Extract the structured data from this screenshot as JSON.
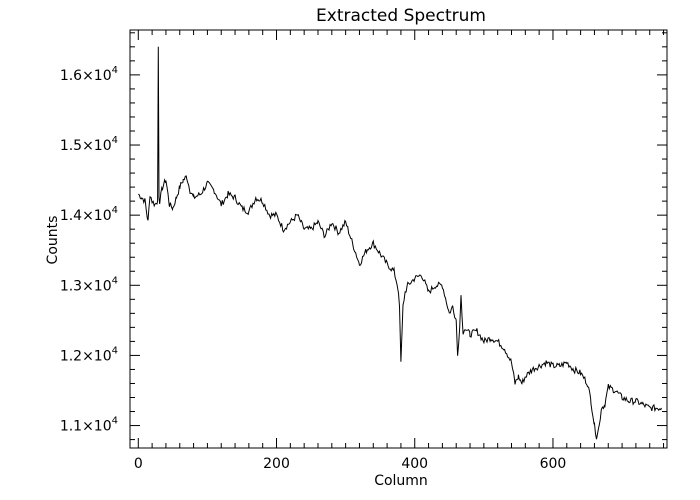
{
  "chart_data": {
    "type": "line",
    "title": "Extracted  Spectrum",
    "xlabel": "Column",
    "ylabel": "Counts",
    "xlim": [
      -12,
      765
    ],
    "ylim": [
      10680,
      16640
    ],
    "x_ticks": [
      {
        "value": 0,
        "label": "0"
      },
      {
        "value": 200,
        "label": "200"
      },
      {
        "value": 400,
        "label": "400"
      },
      {
        "value": 600,
        "label": "600"
      }
    ],
    "y_ticks": [
      {
        "value": 11000,
        "mantissa": "1.1",
        "exp": "4"
      },
      {
        "value": 12000,
        "mantissa": "1.2",
        "exp": "4"
      },
      {
        "value": 13000,
        "mantissa": "1.3",
        "exp": "4"
      },
      {
        "value": 14000,
        "mantissa": "1.4",
        "exp": "4"
      },
      {
        "value": 15000,
        "mantissa": "1.5",
        "exp": "4"
      },
      {
        "value": 16000,
        "mantissa": "1.6",
        "exp": "4"
      }
    ],
    "line_color": "#000000",
    "grid": false,
    "series": [
      {
        "name": "",
        "x": [
          0,
          5,
          10,
          14,
          17,
          20,
          24,
          28,
          29,
          30,
          31,
          35,
          40,
          45,
          50,
          55,
          60,
          65,
          70,
          75,
          80,
          90,
          100,
          110,
          120,
          130,
          140,
          150,
          160,
          170,
          180,
          190,
          200,
          210,
          220,
          230,
          240,
          250,
          260,
          270,
          280,
          290,
          300,
          310,
          320,
          330,
          340,
          350,
          360,
          370,
          375,
          378,
          380,
          383,
          386,
          390,
          400,
          410,
          420,
          430,
          440,
          450,
          455,
          460,
          462,
          465,
          467,
          470,
          472,
          480,
          490,
          500,
          510,
          520,
          530,
          540,
          545,
          550,
          555,
          560,
          570,
          580,
          590,
          600,
          610,
          620,
          630,
          640,
          650,
          655,
          660,
          663,
          667,
          670,
          675,
          680,
          690,
          700,
          710,
          720,
          730,
          740,
          750,
          757
        ],
        "y": [
          14300,
          14250,
          14200,
          13900,
          14300,
          14200,
          14150,
          14200,
          16400,
          14250,
          14200,
          14400,
          14500,
          14150,
          14100,
          14250,
          14400,
          14500,
          14550,
          14350,
          14250,
          14300,
          14450,
          14350,
          14150,
          14300,
          14250,
          14100,
          14050,
          14250,
          14200,
          14000,
          14000,
          13800,
          13900,
          14000,
          13800,
          13800,
          13900,
          13700,
          13900,
          13750,
          13900,
          13600,
          13300,
          13500,
          13600,
          13450,
          13300,
          13200,
          13000,
          12700,
          11900,
          12700,
          12900,
          13000,
          13100,
          13150,
          12900,
          13000,
          13000,
          12600,
          12700,
          12500,
          12000,
          12400,
          12850,
          12300,
          12400,
          12300,
          12350,
          12200,
          12250,
          12200,
          12100,
          11900,
          11600,
          11700,
          11600,
          11700,
          11800,
          11850,
          11900,
          11850,
          11850,
          11900,
          11800,
          11750,
          11600,
          11350,
          11000,
          10850,
          11000,
          11250,
          11300,
          11550,
          11500,
          11400,
          11350,
          11350,
          11300,
          11250,
          11250,
          11250
        ]
      }
    ]
  }
}
